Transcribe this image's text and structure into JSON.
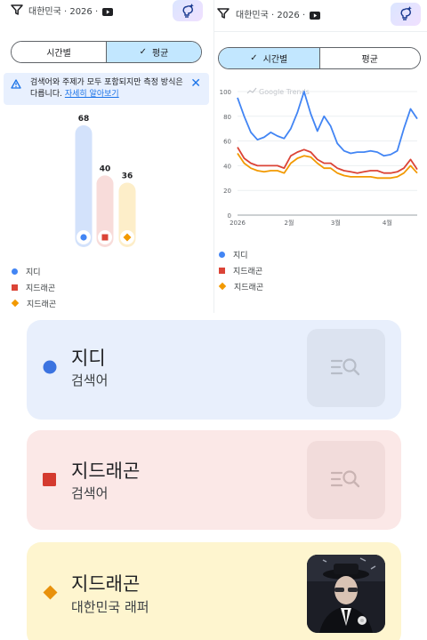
{
  "header": {
    "region_left": "대한민국 · 2026 ·",
    "region_right": "대한민국 · 2026 ·",
    "filter_icon": "filter-icon",
    "video_icon": "youtube-icon",
    "ai_icon": "sparkle-bulb-icon"
  },
  "left": {
    "segment": {
      "tab1": "시간별",
      "tab2": "평균",
      "active": "평균"
    },
    "notice": {
      "text": "검색어와 주제가 모두 포함되지만 측정 방식은 다릅니다.",
      "link": "자세히 알아보기"
    }
  },
  "right": {
    "segment": {
      "tab1": "시간별",
      "tab2": "평균",
      "active": "시간별"
    },
    "watermark": "Google Trends"
  },
  "legend": [
    {
      "label": "지디",
      "shape": "circle",
      "color": "#4285f4"
    },
    {
      "label": "지드래곤",
      "shape": "square",
      "color": "#db4437"
    },
    {
      "label": "지드래곤",
      "shape": "diamond",
      "color": "#f29900"
    }
  ],
  "chart_data": [
    {
      "type": "bar",
      "categories": [
        "지디",
        "지드래곤",
        "지드래곤"
      ],
      "values": [
        68,
        40,
        36
      ],
      "colors": [
        "#4285f4",
        "#db4437",
        "#f29900"
      ],
      "ylim": [
        0,
        68
      ]
    },
    {
      "type": "line",
      "x": [
        "2026-01-01",
        "2026-01-05",
        "2026-01-09",
        "2026-01-13",
        "2026-01-17",
        "2026-01-21",
        "2026-01-25",
        "2026-01-29",
        "2026-02-02",
        "2026-02-06",
        "2026-02-10",
        "2026-02-14",
        "2026-02-18",
        "2026-02-22",
        "2026-02-26",
        "2026-03-02",
        "2026-03-06",
        "2026-03-10",
        "2026-03-14",
        "2026-03-18",
        "2026-03-22",
        "2026-03-26",
        "2026-03-30",
        "2026-04-03",
        "2026-04-07",
        "2026-04-11",
        "2026-04-15",
        "2026-04-19"
      ],
      "x_ticks": [
        "2026",
        "2월",
        "3월",
        "4월"
      ],
      "y_ticks": [
        0,
        20,
        40,
        60,
        80,
        100
      ],
      "ylim": [
        0,
        100
      ],
      "grid": true,
      "series": [
        {
          "name": "지디",
          "color": "#4285f4",
          "values": [
            95,
            80,
            67,
            61,
            63,
            67,
            64,
            62,
            70,
            83,
            100,
            82,
            68,
            80,
            72,
            58,
            52,
            50,
            51,
            51,
            52,
            51,
            48,
            49,
            52,
            70,
            86,
            78
          ]
        },
        {
          "name": "지드래곤",
          "color": "#db4437",
          "values": [
            55,
            46,
            42,
            40,
            40,
            40,
            40,
            38,
            48,
            51,
            53,
            51,
            45,
            42,
            42,
            38,
            36,
            35,
            34,
            35,
            36,
            36,
            34,
            34,
            35,
            38,
            45,
            37
          ]
        },
        {
          "name": "지드래곤",
          "color": "#f29900",
          "values": [
            50,
            42,
            38,
            36,
            35,
            36,
            36,
            34,
            42,
            46,
            48,
            47,
            42,
            38,
            38,
            34,
            32,
            31,
            31,
            31,
            31,
            30,
            30,
            30,
            31,
            34,
            40,
            34
          ]
        }
      ]
    }
  ],
  "cards": [
    {
      "title": "지디",
      "subtitle": "검색어",
      "mark": "circle",
      "color": "#4285f4",
      "icon": "search-list-icon"
    },
    {
      "title": "지드래곤",
      "subtitle": "검색어",
      "mark": "square",
      "color": "#db4437",
      "icon": "search-list-icon"
    },
    {
      "title": "지드래곤",
      "subtitle": "대한민국 래퍼",
      "mark": "diamond",
      "color": "#f29900",
      "icon": "artist-photo"
    }
  ]
}
